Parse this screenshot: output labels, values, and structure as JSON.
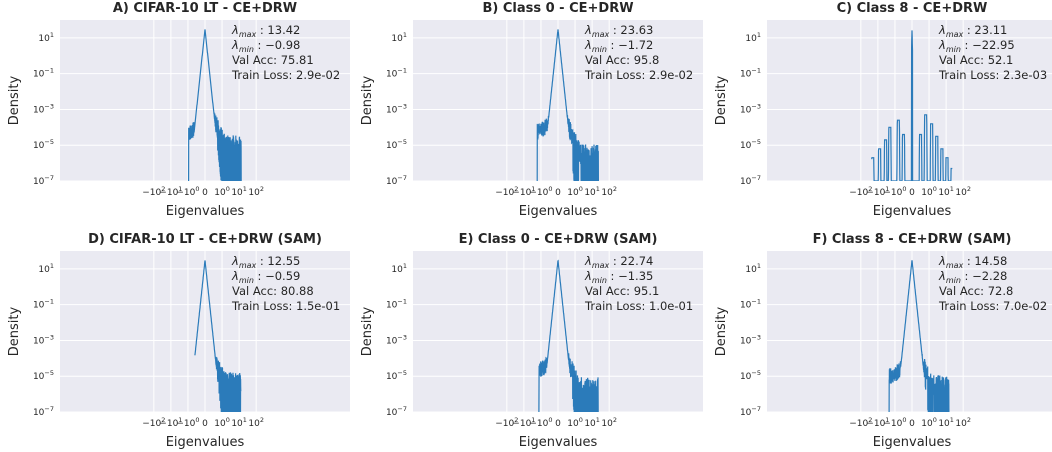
{
  "figure": {
    "y_axis_label": "Density",
    "x_axis_label": "Eigenvalues"
  },
  "chart_data": [
    {
      "type": "line",
      "title": "A) CIFAR-10 LT - CE+DRW",
      "xlabel": "Eigenvalues",
      "ylabel": "Density",
      "xscale": "symlog",
      "yscale": "log",
      "xlim": [
        -250,
        250
      ],
      "ylim": [
        1e-07,
        100
      ],
      "grid": true,
      "xticks": [
        "-10^2",
        "-10^1",
        "-10^0",
        "0",
        "10^0",
        "10^1",
        "10^2"
      ],
      "yticks": [
        "10^1",
        "10^-1",
        "10^-3",
        "10^-5",
        "10^-7"
      ],
      "annotations": [
        "λmax : 13.42",
        "λmin : −0.98",
        "Val Acc: 75.81",
        "Train Loss: 2.9e-02"
      ],
      "peak": {
        "x": 0,
        "density": 30
      },
      "x_range": [
        -0.98,
        13.42
      ],
      "profile": {
        "left_floor_exp": -4.3,
        "shoulder_exp": -2.5,
        "tail_exp": -5.0
      }
    },
    {
      "type": "line",
      "title": "B) Class 0 - CE+DRW",
      "xlabel": "Eigenvalues",
      "ylabel": "Density",
      "xscale": "symlog",
      "yscale": "log",
      "xlim": [
        -250,
        250
      ],
      "ylim": [
        1e-07,
        100
      ],
      "grid": true,
      "xticks": [
        "-10^2",
        "-10^1",
        "-10^0",
        "0",
        "10^0",
        "10^1",
        "10^2"
      ],
      "yticks": [
        "10^1",
        "10^-1",
        "10^-3",
        "10^-5",
        "10^-7"
      ],
      "annotations": [
        "λmax : 23.63",
        "λmin : −1.72",
        "Val Acc: 95.8",
        "Train Loss: 2.9e-02"
      ],
      "peak": {
        "x": 0,
        "density": 30
      },
      "x_range": [
        -1.72,
        23.63
      ],
      "profile": {
        "left_floor_exp": -4.2,
        "shoulder_exp": -2.6,
        "tail_exp": -5.5
      }
    },
    {
      "type": "line",
      "title": "C) Class 8 - CE+DRW",
      "xlabel": "Eigenvalues",
      "ylabel": "Density",
      "xscale": "symlog",
      "yscale": "log",
      "xlim": [
        -250,
        250
      ],
      "ylim": [
        1e-07,
        100
      ],
      "grid": true,
      "xticks": [
        "-10^2",
        "-10^1",
        "-10^0",
        "0",
        "10^0",
        "10^1",
        "10^2"
      ],
      "yticks": [
        "10^1",
        "10^-1",
        "10^-3",
        "10^-5",
        "10^-7"
      ],
      "annotations": [
        "λmax : 23.11",
        "λmin : −22.95",
        "Val Acc: 52.1",
        "Train Loss: 2.3e-03"
      ],
      "peak": {
        "x": 0,
        "density": 30
      },
      "x_range": [
        -22.95,
        23.11
      ],
      "profile": {
        "left_floor_exp": -5.5,
        "shoulder_exp": -3.5,
        "tail_exp": -5.5
      }
    },
    {
      "type": "line",
      "title": "D) CIFAR-10 LT - CE+DRW (SAM)",
      "xlabel": "Eigenvalues",
      "ylabel": "Density",
      "xscale": "symlog",
      "yscale": "log",
      "xlim": [
        -250,
        250
      ],
      "ylim": [
        1e-07,
        100
      ],
      "grid": true,
      "xticks": [
        "-10^2",
        "-10^1",
        "-10^0",
        "0",
        "10^0",
        "10^1",
        "10^2"
      ],
      "yticks": [
        "10^1",
        "10^-1",
        "10^-3",
        "10^-5",
        "10^-7"
      ],
      "annotations": [
        "λmax : 12.55",
        "λmin : −0.59",
        "Val Acc: 80.88",
        "Train Loss: 1.5e-01"
      ],
      "peak": {
        "x": 0,
        "density": 30
      },
      "x_range": [
        -0.59,
        12.55
      ],
      "profile": {
        "left_floor_exp": -4.5,
        "shoulder_exp": -3.2,
        "tail_exp": -5.3
      }
    },
    {
      "type": "line",
      "title": "E) Class 0 - CE+DRW (SAM)",
      "xlabel": "Eigenvalues",
      "ylabel": "Density",
      "xscale": "symlog",
      "yscale": "log",
      "xlim": [
        -250,
        250
      ],
      "ylim": [
        1e-07,
        100
      ],
      "grid": true,
      "xticks": [
        "-10^2",
        "-10^1",
        "-10^0",
        "0",
        "10^0",
        "10^1",
        "10^2"
      ],
      "yticks": [
        "10^1",
        "10^-1",
        "10^-3",
        "10^-5",
        "10^-7"
      ],
      "annotations": [
        "λmax : 22.74",
        "λmin : −1.35",
        "Val Acc: 95.1",
        "Train Loss: 1.0e-01"
      ],
      "peak": {
        "x": 0,
        "density": 30
      },
      "x_range": [
        -1.35,
        22.74
      ],
      "profile": {
        "left_floor_exp": -4.6,
        "shoulder_exp": -3.0,
        "tail_exp": -5.6
      }
    },
    {
      "type": "line",
      "title": "F) Class 8 - CE+DRW (SAM)",
      "xlabel": "Eigenvalues",
      "ylabel": "Density",
      "xscale": "symlog",
      "yscale": "log",
      "xlim": [
        -250,
        250
      ],
      "ylim": [
        1e-07,
        100
      ],
      "grid": true,
      "xticks": [
        "-10^2",
        "-10^1",
        "-10^0",
        "0",
        "10^0",
        "10^1",
        "10^2"
      ],
      "yticks": [
        "10^1",
        "10^-1",
        "10^-3",
        "10^-5",
        "10^-7"
      ],
      "annotations": [
        "λmax : 14.58",
        "λmin : −2.28",
        "Val Acc: 72.8",
        "Train Loss: 7.0e-02"
      ],
      "peak": {
        "x": 0,
        "density": 30
      },
      "x_range": [
        -2.28,
        14.58
      ],
      "profile": {
        "left_floor_exp": -5.0,
        "shoulder_exp": -3.0,
        "tail_exp": -5.5
      }
    }
  ],
  "colors": {
    "line": "#2b7bba",
    "plot_bg": "#eaeaf2",
    "grid": "#ffffff",
    "text": "#262626"
  }
}
